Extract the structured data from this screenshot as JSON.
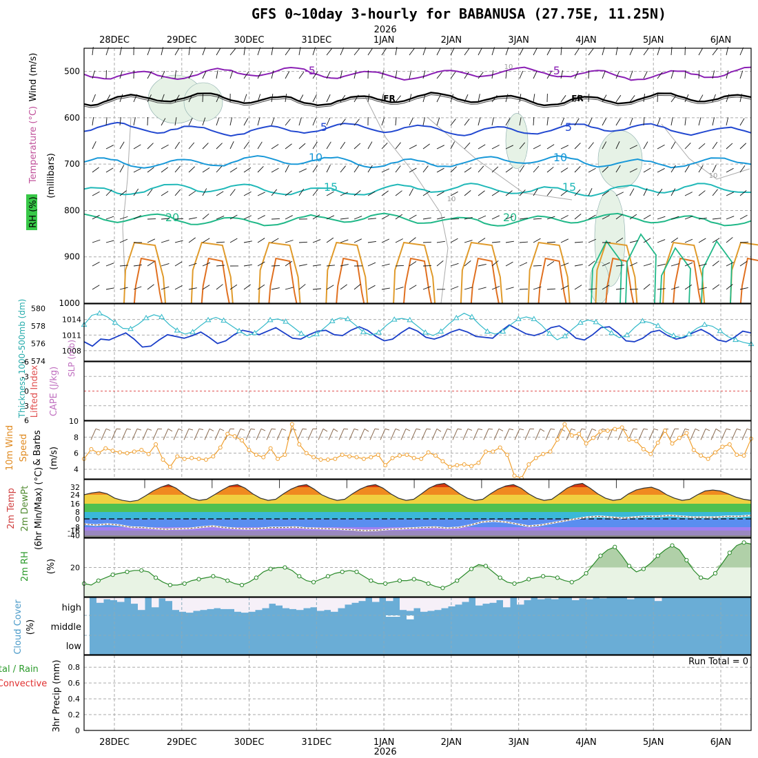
{
  "title": "GFS 0~10day 3-hourly for BABANUSA (27.75E, 11.25N)",
  "time_axis": {
    "year_label": "2026",
    "dates": [
      "28DEC",
      "29DEC",
      "30DEC",
      "31DEC",
      "1JAN",
      "2JAN",
      "3JAN",
      "4JAN",
      "5JAN",
      "6JAN"
    ],
    "start_offset_days": -0.45,
    "end_offset_days": 9.45
  },
  "colors": {
    "temp_purple": "#8a1fb4",
    "freezing_black": "#000000",
    "temp_blue": "#2248d0",
    "temp_sky": "#1898d8",
    "temp_teal": "#20b8b8",
    "temp_green": "#20b888",
    "warm_orange": "#e09a2a",
    "warm_dark_orange": "#e07020",
    "rh_green_fill": "#e6f2e6",
    "slp_cyan": "#30b8c8",
    "thickness_blue": "#1a3ec8",
    "wind_orange": "#f0a030",
    "cloud_blue": "#6aadd6",
    "cloud_clear": "#f6f0f8"
  },
  "chart_data": [
    {
      "id": "upper-air",
      "type": "contour",
      "ylabel_left": [
        "RH (%)",
        "Temperature (°C)",
        "Wind (m/s)"
      ],
      "ylabel_right_axis": "(millibars)",
      "ylim": [
        1000,
        450
      ],
      "yticks": [
        500,
        600,
        700,
        800,
        900,
        1000
      ],
      "isotherms": [
        {
          "label": "-5",
          "level_mb": 505
        },
        {
          "label": "FR",
          "level_mb": 560
        },
        {
          "label": "5",
          "level_mb": 625
        },
        {
          "label": "10",
          "level_mb": 695
        },
        {
          "label": "15",
          "level_mb": 755
        },
        {
          "label": "20",
          "level_mb": 820
        }
      ],
      "isotherm_labels": [
        "-5",
        "-5",
        "FR",
        "FR",
        "5",
        "5",
        "10",
        "10",
        "15",
        "15",
        "20",
        "20"
      ],
      "rh_labels": [
        "10",
        "10",
        "10"
      ]
    },
    {
      "id": "slp-thickness",
      "type": "line",
      "ylabel_left": "Thickness 1000-500mb (dm)",
      "ylabel_right": "SLP (mb)",
      "thickness_yticks": [
        574,
        576,
        578,
        580
      ],
      "slp_yticks": [
        1008,
        1011,
        1014
      ],
      "thickness_ylim": [
        574,
        580.5
      ],
      "slp_ylim": [
        1006,
        1017
      ],
      "thickness_values": [
        5762,
        5757,
        5765,
        5764,
        5768,
        5772,
        5765,
        5756,
        5757,
        5764,
        5770,
        5768,
        5766,
        5769,
        5773,
        5767,
        5760,
        5763,
        5770,
        5775,
        5773,
        5770,
        5774,
        5778,
        5772,
        5766,
        5765,
        5770,
        5774,
        5775,
        5770,
        5769,
        5775,
        5779,
        5775,
        5768,
        5763,
        5765,
        5772,
        5778,
        5774,
        5767,
        5765,
        5768,
        5773,
        5776,
        5773,
        5768,
        5767,
        5766,
        5774,
        5781,
        5776,
        5771,
        5769,
        5772,
        5778,
        5780,
        5774,
        5766,
        5764,
        5770,
        5778,
        5779,
        5772,
        5763,
        5762,
        5766,
        5773,
        5775,
        5769,
        5765,
        5767,
        5772,
        5776,
        5771,
        5764,
        5762,
        5767,
        5774,
        5772
      ],
      "slp_values": [
        10130,
        10148,
        10152,
        10145,
        10134,
        10123,
        10122,
        10131,
        10143,
        10149,
        10145,
        10130,
        10119,
        10112,
        10116,
        10128,
        10139,
        10144,
        10138,
        10128,
        10118,
        10109,
        10114,
        10126,
        10139,
        10141,
        10136,
        10125,
        10113,
        10105,
        10112,
        10124,
        10137,
        10143,
        10141,
        10129,
        10116,
        10110,
        10115,
        10129,
        10140,
        10142,
        10139,
        10127,
        10115,
        10109,
        10117,
        10131,
        10143,
        10152,
        10145,
        10130,
        10117,
        10112,
        10117,
        10130,
        10141,
        10145,
        10141,
        10129,
        10113,
        10101,
        10108,
        10122,
        10134,
        10139,
        10135,
        10125,
        10114,
        10105,
        10110,
        10125,
        10137,
        10134,
        10128,
        10116,
        10109,
        10105,
        10112,
        10123,
        10130,
        10127,
        10118,
        10107,
        10101,
        10096,
        10093
      ]
    },
    {
      "id": "lifted-index-cape",
      "type": "line",
      "ylabel_left": "Lifted Index",
      "ylabel_right": "CAPE (J/kg)",
      "yticks": [
        -6,
        -3,
        0,
        3,
        6
      ],
      "yticklabels": [
        "-6",
        "-3",
        "0",
        "3",
        "6"
      ],
      "ylim": [
        -6,
        6
      ],
      "zero_line": 0
    },
    {
      "id": "wind-10m",
      "type": "line",
      "ylabel": [
        "10m Wind",
        "Speed",
        "& Barbs",
        "(m/s)"
      ],
      "yticks": [
        4,
        6,
        8,
        10
      ],
      "ylim": [
        2.8,
        10
      ],
      "values": [
        5.3,
        6.5,
        6.0,
        6.6,
        6.3,
        6.1,
        6.0,
        6.2,
        6.4,
        5.9,
        7.1,
        5.2,
        4.3,
        5.6,
        5.3,
        5.4,
        5.3,
        5.2,
        5.6,
        6.7,
        8.4,
        8.1,
        7.6,
        6.4,
        5.8,
        5.5,
        6.6,
        5.3,
        5.8,
        9.6,
        7.1,
        6.0,
        5.5,
        5.2,
        5.2,
        5.3,
        5.8,
        5.6,
        5.5,
        5.3,
        5.5,
        5.8,
        4.5,
        5.4,
        5.7,
        5.8,
        5.4,
        5.3,
        6.1,
        5.7,
        5.0,
        4.3,
        4.5,
        4.6,
        4.4,
        4.8,
        6.2,
        6.2,
        6.7,
        5.8,
        3.2,
        2.9,
        4.6,
        5.4,
        5.9,
        6.2,
        7.7,
        9.6,
        8.2,
        8.4,
        7.2,
        7.9,
        8.7,
        8.8,
        9.0,
        9.2,
        7.7,
        7.5,
        6.5,
        5.9,
        7.3,
        8.8,
        7.2,
        7.9,
        8.5,
        6.4,
        5.7,
        5.3,
        6.1,
        6.8,
        7.1,
        5.8,
        5.7,
        7.8
      ]
    },
    {
      "id": "temp-2m",
      "type": "area",
      "ylabel": [
        "2m Temp",
        "2m DewPt",
        "(6hr Min/Max) (°C)"
      ],
      "yticks": [
        -40,
        -16,
        -8,
        0,
        8,
        16,
        24,
        32
      ],
      "ylim": [
        -42,
        38
      ],
      "temp_values": [
        24,
        26,
        27,
        25,
        21,
        19,
        18,
        19,
        23,
        28,
        32,
        34,
        31,
        25,
        21,
        19,
        20,
        24,
        29,
        33,
        34,
        31,
        25,
        21,
        19,
        20,
        25,
        30,
        33,
        34,
        30,
        24,
        21,
        19,
        20,
        25,
        30,
        33,
        34,
        31,
        25,
        21,
        19,
        20,
        25,
        31,
        34,
        35,
        31,
        25,
        21,
        19,
        20,
        25,
        30,
        33,
        34,
        31,
        25,
        21,
        19,
        20,
        25,
        31,
        34,
        35,
        31,
        25,
        21,
        19,
        20,
        25,
        29,
        31,
        32,
        29,
        24,
        21,
        19,
        20,
        24,
        28,
        29,
        28,
        25,
        22,
        20,
        19
      ],
      "dewpoint_values": [
        -5,
        -6,
        -5,
        -6,
        -8,
        -9,
        -11,
        -13,
        -12,
        -11,
        -8,
        -7,
        -9,
        -11,
        -12,
        -11,
        -9,
        -9,
        -8,
        -10,
        -11,
        -12,
        -13,
        -14,
        -16,
        -15,
        -13,
        -12,
        -10,
        -9,
        -8,
        -10,
        -9,
        -6,
        -3,
        -2,
        -3,
        -5,
        -7,
        -6,
        -4,
        -2,
        0,
        2,
        3,
        2,
        1,
        2,
        3,
        3,
        4,
        3,
        2,
        2,
        2,
        3,
        3,
        4
      ]
    },
    {
      "id": "rh-2m",
      "type": "area",
      "ylabel": [
        "2m RH",
        "(%)"
      ],
      "yticks": [
        20
      ],
      "ylim": [
        0,
        40
      ],
      "values": [
        9,
        8,
        11,
        13,
        15,
        16,
        17,
        18,
        18,
        17,
        13,
        10,
        8,
        8,
        9,
        11,
        12,
        13,
        14,
        13,
        11,
        9,
        8,
        10,
        13,
        17,
        19,
        20,
        20,
        18,
        14,
        11,
        10,
        12,
        14,
        16,
        17,
        18,
        17,
        14,
        11,
        9,
        9,
        10,
        11,
        11,
        12,
        11,
        9,
        7,
        6,
        8,
        11,
        15,
        19,
        22,
        21,
        17,
        13,
        10,
        9,
        10,
        12,
        13,
        14,
        14,
        13,
        11,
        10,
        12,
        16,
        22,
        28,
        32,
        34,
        28,
        21,
        17,
        19,
        23,
        28,
        32,
        35,
        32,
        25,
        18,
        13,
        12,
        16,
        23,
        30,
        35,
        37,
        36
      ]
    },
    {
      "id": "cloud-cover",
      "type": "area",
      "ylabel": [
        "Cloud Cover",
        "(%)"
      ],
      "yticklabels": [
        "high",
        "middle",
        "low"
      ],
      "high_values": [
        100,
        70,
        90,
        85,
        75,
        100,
        65,
        30,
        100,
        45,
        95,
        80,
        30,
        20,
        15,
        25,
        30,
        35,
        40,
        35,
        35,
        20,
        15,
        20,
        30,
        40,
        65,
        55,
        40,
        35,
        30,
        40,
        45,
        25,
        30,
        20,
        40,
        60,
        70,
        80,
        100,
        75,
        100,
        80,
        100,
        30,
        25,
        40,
        20,
        25,
        30,
        40,
        50,
        60,
        75,
        100,
        55,
        65,
        70,
        85,
        45,
        100,
        60,
        85,
        100,
        90,
        95,
        90,
        100,
        100,
        85,
        95,
        90,
        100,
        95,
        100,
        100,
        100,
        90,
        100,
        100,
        100,
        80,
        100,
        100,
        100,
        100,
        100,
        100,
        100,
        100,
        100,
        100,
        100,
        100,
        100
      ],
      "middle_values": [
        100,
        100,
        100,
        100,
        100,
        100,
        100,
        100,
        100,
        100,
        100,
        100,
        100,
        100,
        100,
        100,
        100,
        100,
        100,
        100,
        100,
        100,
        100,
        100,
        100,
        100,
        100,
        100,
        100,
        100,
        100,
        100,
        100,
        100,
        100,
        100,
        100,
        100,
        100,
        100,
        100,
        100,
        100,
        93,
        93,
        100,
        80,
        100,
        100,
        100,
        100,
        100,
        100,
        100,
        100,
        100,
        100,
        100,
        100,
        100,
        100,
        100,
        100,
        100,
        100,
        100,
        100,
        100,
        100,
        100,
        100,
        100,
        100,
        100,
        100,
        100,
        100,
        100,
        100,
        100,
        100,
        100,
        100,
        100,
        100,
        100,
        100,
        100,
        100,
        100,
        100,
        100,
        100,
        100,
        100,
        100
      ]
    },
    {
      "id": "precip-3hr",
      "type": "bar",
      "ylabel_left": [
        "Total / Rain",
        "Convective"
      ],
      "ylabel": "3hr Precip (mm)",
      "yticks": [
        0,
        0.2,
        0.4,
        0.6,
        0.8
      ],
      "yticklabels": [
        "0",
        "0.2",
        "0.4",
        "0.6",
        "0.8"
      ],
      "ylim": [
        0,
        0.95
      ],
      "run_total": "Run Total = 0",
      "values": []
    }
  ]
}
